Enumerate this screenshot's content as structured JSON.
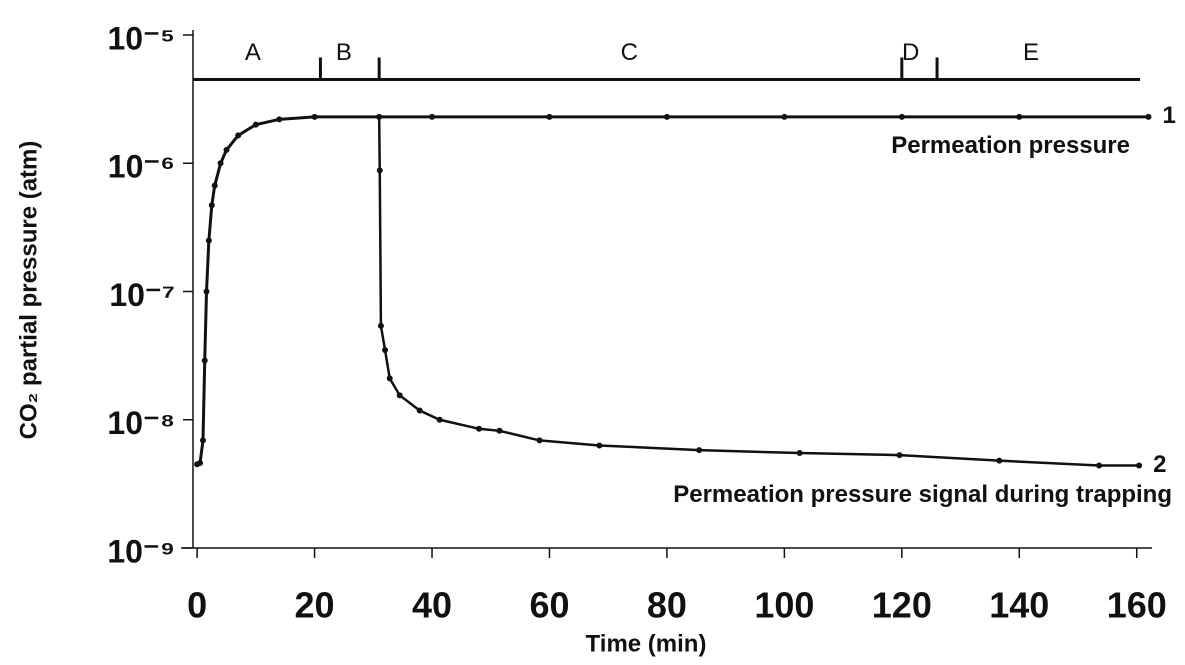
{
  "chart_data": {
    "type": "line",
    "x_label": "Time (min)",
    "y_label": "CO₂ partial pressure (atm)",
    "log_y": true,
    "xlim": [
      -0.7,
      162.6
    ],
    "ylim": [
      1e-09,
      1e-05
    ],
    "xticks": [
      0,
      20,
      40,
      60,
      80,
      100,
      120,
      140,
      160
    ],
    "yticks": [
      {
        "value": 1e-09,
        "label": "10⁻⁹"
      },
      {
        "value": 1e-08,
        "label": "10⁻⁸"
      },
      {
        "value": 1e-07,
        "label": "10⁻⁷"
      },
      {
        "value": 1e-06,
        "label": "10⁻⁶"
      },
      {
        "value": 1e-05,
        "label": "10⁻⁵"
      }
    ],
    "phases": {
      "labels": [
        "A",
        "B",
        "C",
        "D",
        "E"
      ],
      "label_x": [
        9.5,
        25,
        73.6,
        121.5,
        142
      ],
      "boundaries": [
        21,
        31,
        120,
        126
      ],
      "y": 4.5e-06
    },
    "series": [
      {
        "name": "1",
        "description": "Permeation pressure",
        "color": "#111111",
        "x": [
          0,
          0.5,
          1,
          1.3,
          1.6,
          2,
          2.5,
          3,
          4,
          5,
          7,
          10,
          14,
          20,
          40,
          60,
          80,
          100,
          120,
          140,
          162
        ],
        "values": [
          4.5e-09,
          4.6e-09,
          6.9e-09,
          2.9e-08,
          1e-07,
          2.5e-07,
          4.7e-07,
          6.7e-07,
          1e-06,
          1.27e-06,
          1.65e-06,
          2e-06,
          2.2e-06,
          2.3e-06,
          2.3e-06,
          2.3e-06,
          2.3e-06,
          2.3e-06,
          2.3e-06,
          2.3e-06,
          2.3e-06
        ]
      },
      {
        "name": "2",
        "description": "Permeation pressure signal during trapping",
        "color": "#111111",
        "x": [
          31,
          31.1,
          31.3,
          32,
          32.8,
          34.5,
          37.9,
          41.3,
          48,
          51.5,
          58.3,
          68.5,
          85.5,
          102.6,
          119.6,
          136.6,
          153.6,
          160.4
        ],
        "values": [
          2.3e-06,
          8.8e-07,
          5.4e-08,
          3.5e-08,
          2.1e-08,
          1.55e-08,
          1.18e-08,
          1e-08,
          8.5e-09,
          8.2e-09,
          6.9e-09,
          6.3e-09,
          5.8e-09,
          5.5e-09,
          5.3e-09,
          4.8e-09,
          4.4e-09,
          4.4e-09
        ]
      }
    ]
  }
}
